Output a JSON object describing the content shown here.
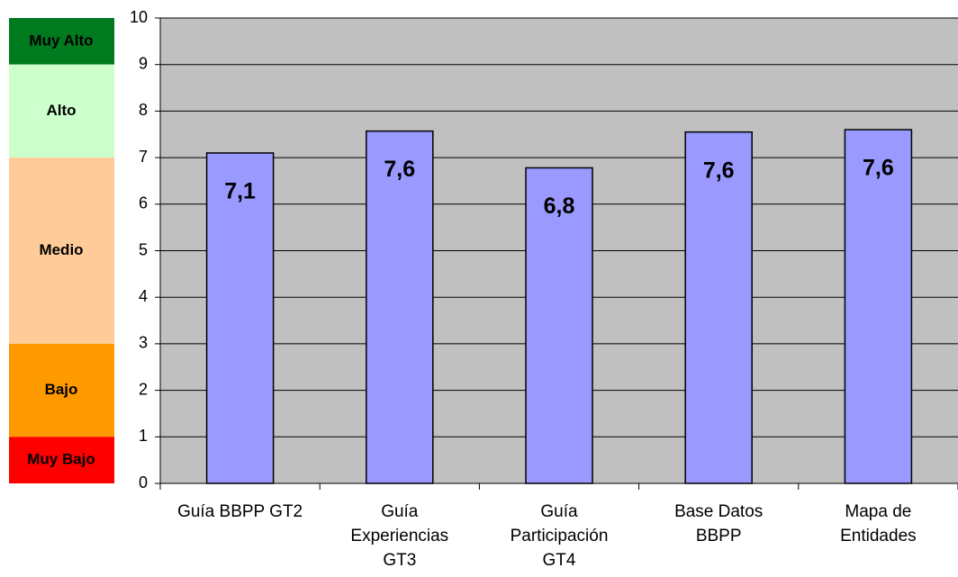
{
  "chart_data": {
    "type": "bar",
    "categories": [
      "Guía BBPP GT2",
      "Guía Experiencias GT3",
      "Guía Participación GT4",
      "Base Datos BBPP",
      "Mapa de Entidades"
    ],
    "values": [
      7.1,
      7.57,
      6.78,
      7.55,
      7.6
    ],
    "value_labels": [
      "7,1",
      "7,6",
      "6,8",
      "7,6",
      "7,6"
    ],
    "color": "#9999ff",
    "ylim": [
      0,
      10
    ],
    "yticks": [
      0,
      1,
      2,
      3,
      4,
      5,
      6,
      7,
      8,
      9,
      10
    ],
    "grid": true,
    "bands": [
      {
        "label": "Muy Alto",
        "from": 9,
        "to": 10,
        "color": "#007a1e",
        "text_color": "#000000"
      },
      {
        "label": "Alto",
        "from": 7,
        "to": 9,
        "color": "#ccffcc",
        "text_color": "#000000"
      },
      {
        "label": "Medio",
        "from": 3,
        "to": 7,
        "color": "#ffcc99",
        "text_color": "#000000"
      },
      {
        "label": "Bajo",
        "from": 1,
        "to": 3,
        "color": "#ff9900",
        "text_color": "#000000"
      },
      {
        "label": "Muy Bajo",
        "from": 0,
        "to": 1,
        "color": "#ff0000",
        "text_color": "#000000"
      }
    ]
  }
}
